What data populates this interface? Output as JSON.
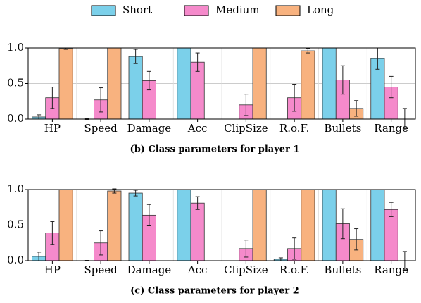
{
  "chart_data": [
    {
      "type": "bar",
      "caption": "(b) Class parameters for player 1",
      "categories": [
        "HP",
        "Speed",
        "Damage",
        "Acc",
        "ClipSize",
        "R.o.F.",
        "Bullets",
        "Range"
      ],
      "series": [
        {
          "name": "Short",
          "color": "#7bd0ea",
          "values": [
            0.03,
            0.0,
            0.88,
            1.0,
            0.0,
            0.0,
            1.0,
            0.85
          ],
          "errors": [
            0.03,
            0.005,
            0.1,
            0.0,
            0.0,
            0.0,
            0.0,
            0.15
          ]
        },
        {
          "name": "Medium",
          "color": "#f58acb",
          "values": [
            0.3,
            0.27,
            0.54,
            0.8,
            0.2,
            0.3,
            0.55,
            0.45
          ],
          "errors": [
            0.15,
            0.17,
            0.13,
            0.13,
            0.15,
            0.19,
            0.2,
            0.15
          ]
        },
        {
          "name": "Long",
          "color": "#f8b27f",
          "values": [
            0.99,
            1.0,
            0.0,
            0.0,
            1.0,
            0.96,
            0.15,
            0.0
          ],
          "errors": [
            0.01,
            0.0,
            0.0,
            0.0,
            0.0,
            0.03,
            0.11,
            0.15
          ]
        }
      ],
      "ylim": [
        0,
        1
      ],
      "yticks": [
        {
          "value": 0,
          "label": "0.0"
        },
        {
          "value": 0.5,
          "label": "0.5"
        },
        {
          "value": 1,
          "label": "1.0"
        }
      ],
      "grid": true
    },
    {
      "type": "bar",
      "caption": "(c) Class parameters for player 2",
      "categories": [
        "HP",
        "Speed",
        "Damage",
        "Acc",
        "ClipSize",
        "R.o.F.",
        "Bullets",
        "Range"
      ],
      "series": [
        {
          "name": "Short",
          "color": "#7bd0ea",
          "values": [
            0.06,
            0.0,
            0.95,
            1.0,
            0.0,
            0.02,
            1.0,
            1.0
          ],
          "errors": [
            0.06,
            0.005,
            0.04,
            0.0,
            0.0,
            0.02,
            0.0,
            0.0
          ]
        },
        {
          "name": "Medium",
          "color": "#f58acb",
          "values": [
            0.39,
            0.25,
            0.64,
            0.81,
            0.17,
            0.17,
            0.52,
            0.72
          ],
          "errors": [
            0.16,
            0.17,
            0.15,
            0.09,
            0.12,
            0.15,
            0.21,
            0.1
          ]
        },
        {
          "name": "Long",
          "color": "#f8b27f",
          "values": [
            1.0,
            0.98,
            0.0,
            0.0,
            1.0,
            1.0,
            0.3,
            0.0
          ],
          "errors": [
            0.0,
            0.03,
            0.0,
            0.0,
            0.0,
            0.0,
            0.15,
            0.13
          ]
        }
      ],
      "ylim": [
        0,
        1
      ],
      "yticks": [
        {
          "value": 0,
          "label": "0.0"
        },
        {
          "value": 0.5,
          "label": "0.5"
        },
        {
          "value": 1,
          "label": "1.0"
        }
      ],
      "grid": true
    }
  ]
}
